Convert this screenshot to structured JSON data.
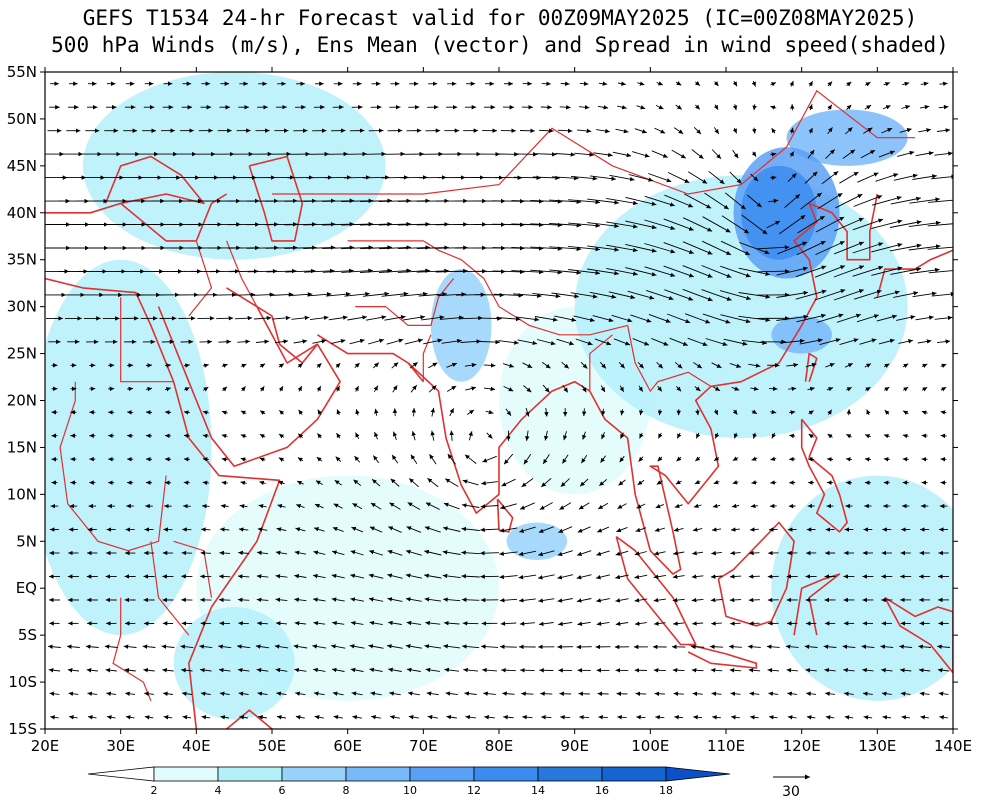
{
  "title": {
    "line1": "GEFS T1534 24-hr Forecast valid for 00Z09MAY2025 (IC=00Z08MAY2025)",
    "line2": "500 hPa Winds (m/s), Ens Mean (vector) and Spread in wind speed(shaded)"
  },
  "map": {
    "lon_range": [
      20,
      140
    ],
    "lat_range": [
      -15,
      55
    ],
    "lon_ticks": [
      {
        "value": 20,
        "label": "20E"
      },
      {
        "value": 30,
        "label": "30E"
      },
      {
        "value": 40,
        "label": "40E"
      },
      {
        "value": 50,
        "label": "50E"
      },
      {
        "value": 60,
        "label": "60E"
      },
      {
        "value": 70,
        "label": "70E"
      },
      {
        "value": 80,
        "label": "80E"
      },
      {
        "value": 90,
        "label": "90E"
      },
      {
        "value": 100,
        "label": "100E"
      },
      {
        "value": 110,
        "label": "110E"
      },
      {
        "value": 120,
        "label": "120E"
      },
      {
        "value": 130,
        "label": "130E"
      },
      {
        "value": 140,
        "label": "140E"
      }
    ],
    "lat_ticks": [
      {
        "value": 55,
        "label": "55N"
      },
      {
        "value": 50,
        "label": "50N"
      },
      {
        "value": 45,
        "label": "45N"
      },
      {
        "value": 40,
        "label": "40N"
      },
      {
        "value": 35,
        "label": "35N"
      },
      {
        "value": 30,
        "label": "30N"
      },
      {
        "value": 25,
        "label": "25N"
      },
      {
        "value": 20,
        "label": "20N"
      },
      {
        "value": 15,
        "label": "15N"
      },
      {
        "value": 10,
        "label": "10N"
      },
      {
        "value": 5,
        "label": "5N"
      },
      {
        "value": 0,
        "label": "EQ"
      },
      {
        "value": -5,
        "label": "5S"
      },
      {
        "value": -10,
        "label": "10S"
      },
      {
        "value": -15,
        "label": "15S"
      }
    ],
    "coastline_color": "#e03030",
    "vector_color": "#000000"
  },
  "colorbar": {
    "levels": [
      "2",
      "4",
      "6",
      "8",
      "10",
      "12",
      "14",
      "16",
      "18"
    ],
    "colors": [
      "#ffffff",
      "#e1fcfc",
      "#b4f0fa",
      "#96d2fa",
      "#78b9fa",
      "#5aa0f5",
      "#3c8cf0",
      "#2878dc",
      "#1464d2",
      "#0a50c8"
    ]
  },
  "reference_vector": {
    "label": "30"
  },
  "spread_patches": [
    {
      "lon": 118,
      "lat": 40,
      "rlon": 7,
      "rlat": 7,
      "level": 5
    },
    {
      "lon": 117,
      "lat": 40,
      "rlon": 5,
      "rlat": 5,
      "level": 6
    },
    {
      "lon": 126,
      "lat": 48,
      "rlon": 8,
      "rlat": 3,
      "level": 4
    },
    {
      "lon": 120,
      "lat": 27,
      "rlon": 4,
      "rlat": 2,
      "level": 4
    },
    {
      "lon": 112,
      "lat": 30,
      "rlon": 22,
      "rlat": 14,
      "level": 2
    },
    {
      "lon": 75,
      "lat": 28,
      "rlon": 4,
      "rlat": 6,
      "level": 3
    },
    {
      "lon": 85,
      "lat": 5,
      "rlon": 4,
      "rlat": 2,
      "level": 3
    },
    {
      "lon": 45,
      "lat": 45,
      "rlon": 20,
      "rlat": 10,
      "level": 2
    },
    {
      "lon": 30,
      "lat": 15,
      "rlon": 12,
      "rlat": 20,
      "level": 2
    },
    {
      "lon": 130,
      "lat": 0,
      "rlon": 14,
      "rlat": 12,
      "level": 2
    },
    {
      "lon": 90,
      "lat": 20,
      "rlon": 10,
      "rlat": 10,
      "level": 1
    },
    {
      "lon": 60,
      "lat": 0,
      "rlon": 20,
      "rlat": 12,
      "level": 1
    },
    {
      "lon": 45,
      "lat": -8,
      "rlon": 8,
      "rlat": 6,
      "level": 2
    }
  ],
  "wind_field": {
    "lon_step": 2.5,
    "lat_step": 2.5,
    "anticyclone": {
      "lon": 78,
      "lat": 15,
      "radius": 22
    },
    "cyclone": {
      "lon": 116,
      "lat": 38,
      "radius": 16
    },
    "westerly_jet_lat": 38
  }
}
